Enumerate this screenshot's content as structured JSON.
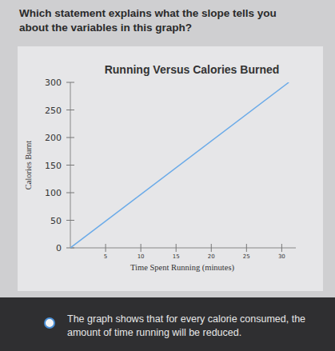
{
  "question": "Which statement explains what the slope tells you about the variables in this graph?",
  "answer": "The graph shows that for every calorie consumed, the amount of time running will be reduced.",
  "chart_data": {
    "type": "line",
    "title": "Running Versus Calories Burned",
    "x_label": "Time Spent Running (minutes)",
    "y_label": "Calories Burnt",
    "x": [
      0,
      31
    ],
    "values": [
      0,
      300
    ],
    "color": "#6aaae8",
    "xlim": [
      0,
      32
    ],
    "ylim": [
      0,
      300
    ],
    "xticks": [
      5,
      10,
      15,
      20,
      25,
      30
    ],
    "yticks": [
      0,
      50,
      100,
      150,
      200,
      250,
      300
    ],
    "grid": false
  }
}
